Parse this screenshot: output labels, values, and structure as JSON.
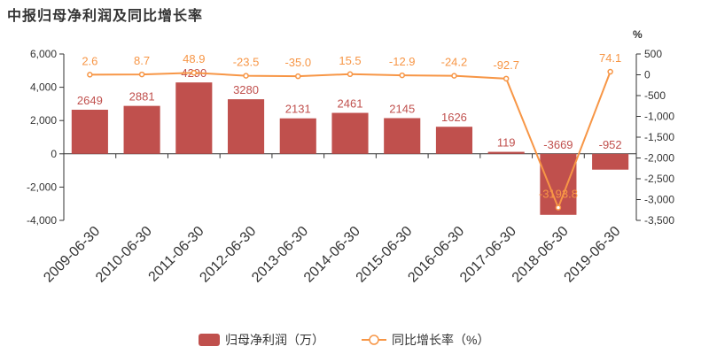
{
  "chart_data": {
    "title": "中报归母净利润及同比增长率",
    "type": "bar+line",
    "categories": [
      "2009-06-30",
      "2010-06-30",
      "2011-06-30",
      "2012-06-30",
      "2013-06-30",
      "2014-06-30",
      "2015-06-30",
      "2016-06-30",
      "2017-06-30",
      "2018-06-30",
      "2019-06-30"
    ],
    "series": [
      {
        "name": "归母净利润（万）",
        "type": "bar",
        "axis": "left",
        "values": [
          2649,
          2881,
          4290,
          3280,
          2131,
          2461,
          2145,
          1626,
          119,
          -3669,
          -952
        ],
        "labels": [
          "2649",
          "2881",
          "4290",
          "3280",
          "2131",
          "2461",
          "2145",
          "1626",
          "119",
          "-3669",
          "-952"
        ]
      },
      {
        "name": "同比增长率（%）",
        "type": "line",
        "axis": "right",
        "values": [
          2.6,
          8.7,
          48.9,
          -23.5,
          -35.0,
          15.5,
          -12.9,
          -24.2,
          -92.7,
          -3193.8,
          74.1
        ],
        "labels": [
          "2.6",
          "8.7",
          "48.9",
          "-23.5",
          "-35.0",
          "15.5",
          "-12.9",
          "-24.2",
          "-92.7",
          "-3193.8",
          "74.1"
        ]
      }
    ],
    "y_left": {
      "min": -4000,
      "max": 6000,
      "ticks": [
        "-4,000",
        "-2,000",
        "0",
        "2,000",
        "4,000",
        "6,000"
      ],
      "tick_values": [
        -4000,
        -2000,
        0,
        2000,
        4000,
        6000
      ]
    },
    "y_right": {
      "unit": "%",
      "min": -3500,
      "max": 500,
      "ticks": [
        "-3,500",
        "-3,000",
        "-2,500",
        "-2,000",
        "-1,500",
        "-1,000",
        "-500",
        "0",
        "500"
      ],
      "tick_values": [
        -3500,
        -3000,
        -2500,
        -2000,
        -1500,
        -1000,
        -500,
        0,
        500
      ]
    },
    "legend": {
      "position": "bottom-center"
    },
    "colors": {
      "bar": "#c0504d",
      "line": "#f79646",
      "axis": "#333333"
    }
  }
}
